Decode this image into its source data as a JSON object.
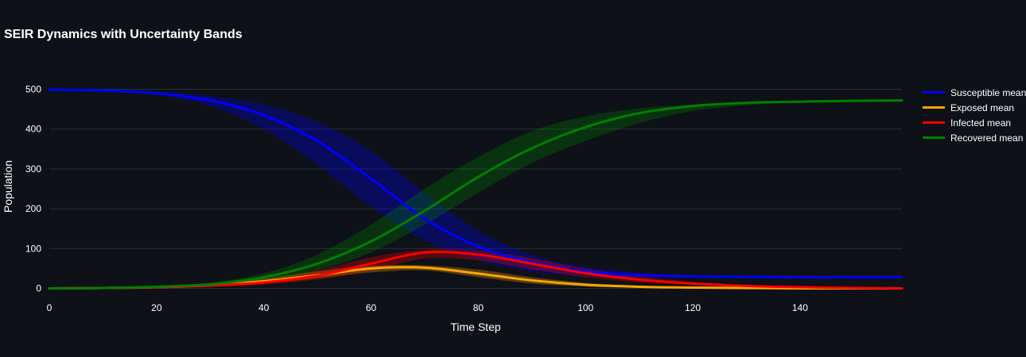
{
  "chart_data": {
    "type": "line",
    "title": "SEIR Dynamics with Uncertainty Bands",
    "xlabel": "Time Step",
    "ylabel": "Population",
    "xlim": [
      0,
      159
    ],
    "ylim": [
      -13,
      525
    ],
    "x_ticks": [
      0,
      20,
      40,
      60,
      80,
      100,
      120,
      140
    ],
    "y_ticks": [
      0,
      100,
      200,
      300,
      400,
      500
    ],
    "grid": true,
    "legend_position": "right",
    "x": [
      0,
      10,
      20,
      30,
      40,
      50,
      60,
      70,
      80,
      90,
      100,
      110,
      120,
      130,
      140,
      150,
      159
    ],
    "series": [
      {
        "name": "Susceptible mean",
        "color": "#0000ff",
        "band_color": "rgba(0,0,255,0.3)",
        "values": [
          499,
          497,
          490,
          472,
          435,
          370,
          275,
          175,
          105,
          65,
          42,
          33,
          30,
          29,
          28,
          28,
          28
        ],
        "lower": [
          499,
          496,
          486,
          458,
          400,
          310,
          205,
          120,
          70,
          42,
          30,
          28,
          27,
          27,
          27,
          27,
          27
        ],
        "upper": [
          499,
          498,
          494,
          483,
          462,
          418,
          345,
          240,
          145,
          85,
          55,
          40,
          33,
          30,
          29,
          29,
          29
        ]
      },
      {
        "name": "Exposed mean",
        "color": "#ffa500",
        "band_color": "rgba(255,165,0,0.3)",
        "values": [
          0,
          1,
          3,
          8,
          18,
          33,
          50,
          52,
          37,
          20,
          9,
          4,
          2,
          1,
          0,
          0,
          0
        ],
        "lower": [
          0,
          1,
          2,
          5,
          12,
          25,
          40,
          45,
          28,
          12,
          5,
          2,
          1,
          0,
          0,
          0,
          0
        ],
        "upper": [
          0,
          2,
          4,
          11,
          25,
          43,
          57,
          58,
          47,
          28,
          14,
          7,
          3,
          1,
          1,
          0,
          0
        ]
      },
      {
        "name": "Infected mean",
        "color": "#ff0000",
        "band_color": "rgba(255,0,0,0.3)",
        "values": [
          0,
          1,
          3,
          7,
          15,
          32,
          62,
          90,
          85,
          62,
          38,
          22,
          12,
          6,
          3,
          1,
          0
        ],
        "lower": [
          0,
          1,
          2,
          4,
          9,
          22,
          45,
          75,
          70,
          48,
          28,
          15,
          8,
          4,
          2,
          1,
          0
        ],
        "upper": [
          0,
          2,
          5,
          11,
          24,
          45,
          78,
          97,
          95,
          76,
          50,
          30,
          17,
          9,
          5,
          2,
          1
        ]
      },
      {
        "name": "Recovered mean",
        "color": "#008000",
        "band_color": "rgba(0,128,0,0.3)",
        "values": [
          0,
          1,
          4,
          10,
          28,
          62,
          118,
          195,
          280,
          352,
          405,
          440,
          458,
          466,
          469,
          471,
          472
        ],
        "lower": [
          0,
          1,
          3,
          7,
          18,
          45,
          90,
          160,
          240,
          315,
          370,
          415,
          445,
          460,
          467,
          470,
          471
        ],
        "upper": [
          0,
          2,
          6,
          15,
          38,
          85,
          160,
          250,
          330,
          395,
          432,
          452,
          462,
          468,
          470,
          471,
          472
        ]
      }
    ]
  }
}
